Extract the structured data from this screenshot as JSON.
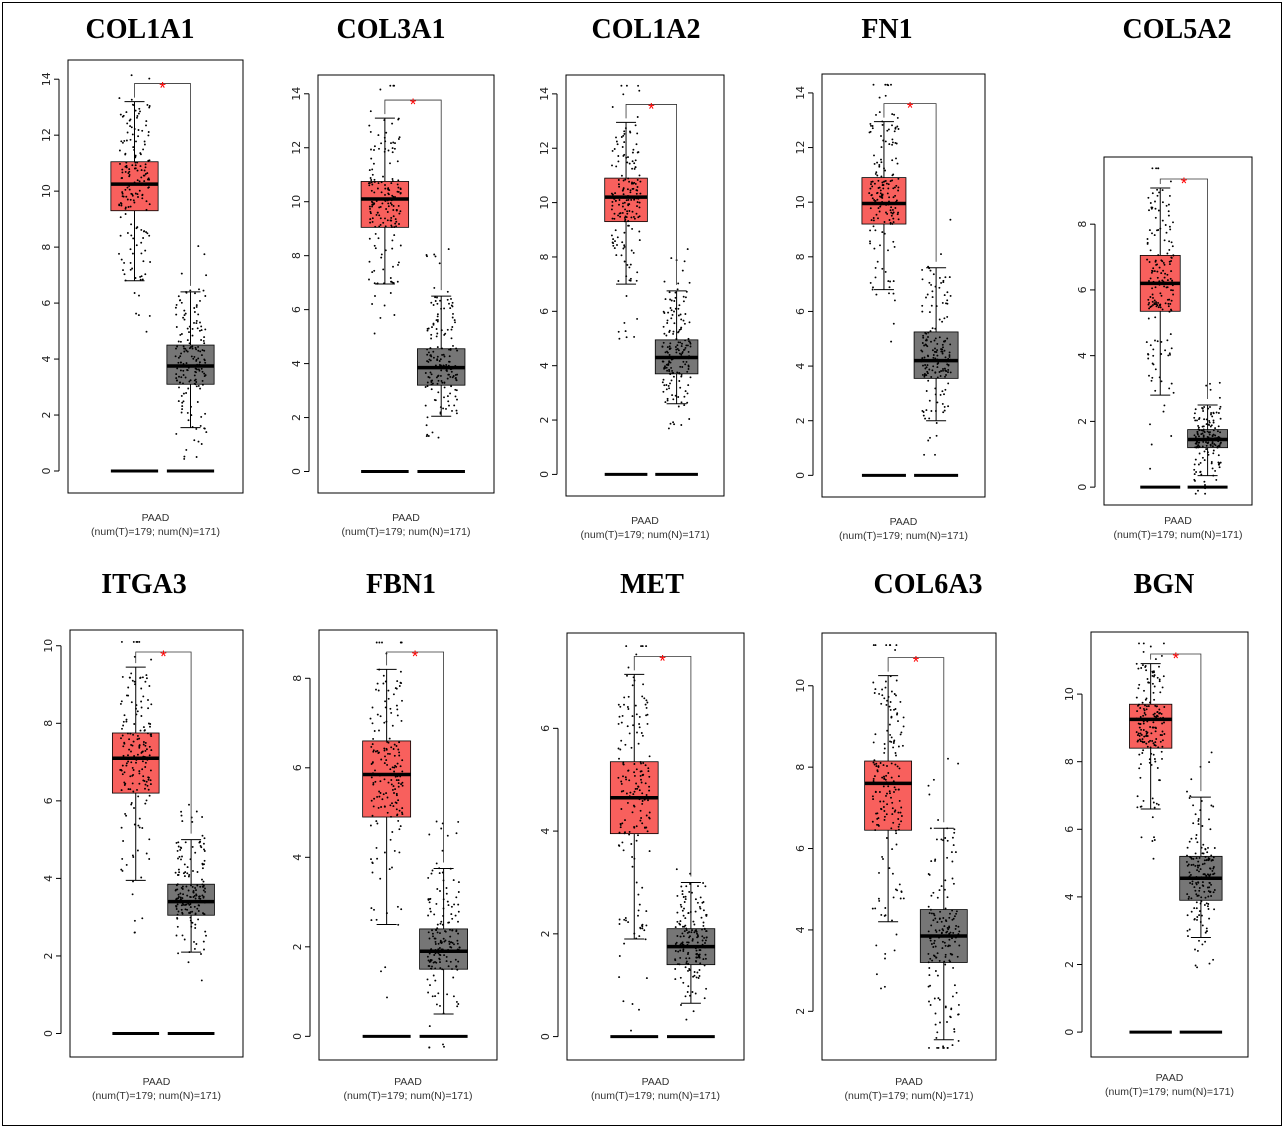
{
  "figure": {
    "colors": {
      "tumor": "#f8605d",
      "normal": "#767676",
      "significance": "#ff0000",
      "points": "#000000"
    }
  },
  "chart_data": [
    {
      "type": "box",
      "title": "COL1A1",
      "caption_line1": "PAAD",
      "caption_line2": "(num(T)=179; num(N)=171)",
      "yticks": [
        0,
        2,
        4,
        6,
        8,
        10,
        12,
        14
      ],
      "ylim": [
        -0.5,
        14.4
      ],
      "significance": "*",
      "tumor": {
        "min": 6.8,
        "q1": 9.3,
        "median": 10.25,
        "q3": 11.05,
        "max": 13.2,
        "n": 179
      },
      "normal": {
        "min": 1.55,
        "q1": 3.1,
        "median": 3.75,
        "q3": 4.5,
        "max": 6.4,
        "n": 171
      }
    },
    {
      "type": "box",
      "title": "COL3A1",
      "caption_line1": "PAAD",
      "caption_line2": "(num(T)=179; num(N)=171)",
      "yticks": [
        0,
        2,
        4,
        6,
        8,
        10,
        12,
        14
      ],
      "ylim": [
        -0.5,
        14.4
      ],
      "significance": "*",
      "tumor": {
        "min": 6.95,
        "q1": 9.05,
        "median": 10.1,
        "q3": 10.75,
        "max": 13.1,
        "n": 179
      },
      "normal": {
        "min": 2.05,
        "q1": 3.2,
        "median": 3.85,
        "q3": 4.55,
        "max": 6.5,
        "n": 171
      }
    },
    {
      "type": "box",
      "title": "COL1A2",
      "caption_line1": "PAAD",
      "caption_line2": "(num(T)=179; num(N)=171)",
      "yticks": [
        0,
        2,
        4,
        6,
        8,
        10,
        12,
        14
      ],
      "ylim": [
        -0.5,
        14.4
      ],
      "significance": "*",
      "tumor": {
        "min": 7.0,
        "q1": 9.3,
        "median": 10.2,
        "q3": 10.9,
        "max": 12.95,
        "n": 179
      },
      "normal": {
        "min": 2.6,
        "q1": 3.7,
        "median": 4.3,
        "q3": 4.95,
        "max": 6.75,
        "n": 171
      }
    },
    {
      "type": "box",
      "title": "FN1",
      "caption_line1": "PAAD",
      "caption_line2": "(num(T)=179; num(N)=171)",
      "yticks": [
        0,
        2,
        4,
        6,
        8,
        10,
        12,
        14
      ],
      "ylim": [
        -0.5,
        14.4
      ],
      "significance": "*",
      "tumor": {
        "min": 6.8,
        "q1": 9.2,
        "median": 9.95,
        "q3": 10.9,
        "max": 12.95,
        "n": 179
      },
      "normal": {
        "min": 2.0,
        "q1": 3.55,
        "median": 4.2,
        "q3": 5.25,
        "max": 7.6,
        "n": 171
      }
    },
    {
      "type": "box",
      "title": "COL5A2",
      "caption_line1": "PAAD",
      "caption_line2": "(num(T)=179; num(N)=171)",
      "yticks": [
        0,
        2,
        4,
        6,
        8
      ],
      "ylim": [
        -0.3,
        9.8
      ],
      "significance": "*",
      "tumor": {
        "min": 2.8,
        "q1": 5.35,
        "median": 6.2,
        "q3": 7.05,
        "max": 9.1,
        "n": 179
      },
      "normal": {
        "min": 0.35,
        "q1": 1.2,
        "median": 1.45,
        "q3": 1.75,
        "max": 2.5,
        "n": 171
      }
    },
    {
      "type": "box",
      "title": "ITGA3",
      "caption_line1": "PAAD",
      "caption_line2": "(num(T)=179; num(N)=171)",
      "yticks": [
        0,
        2,
        4,
        6,
        8,
        10
      ],
      "ylim": [
        -0.4,
        10.2
      ],
      "significance": "*",
      "tumor": {
        "min": 3.95,
        "q1": 6.2,
        "median": 7.1,
        "q3": 7.75,
        "max": 9.45,
        "n": 179
      },
      "normal": {
        "min": 2.1,
        "q1": 3.05,
        "median": 3.4,
        "q3": 3.85,
        "max": 5.0,
        "n": 171
      }
    },
    {
      "type": "box",
      "title": "FBN1",
      "caption_line1": "PAAD",
      "caption_line2": "(num(T)=179; num(N)=171)",
      "yticks": [
        0,
        2,
        4,
        6,
        8
      ],
      "ylim": [
        -0.35,
        8.9
      ],
      "significance": "*",
      "tumor": {
        "min": 2.5,
        "q1": 4.9,
        "median": 5.85,
        "q3": 6.6,
        "max": 8.2,
        "n": 179
      },
      "normal": {
        "min": 0.5,
        "q1": 1.5,
        "median": 1.9,
        "q3": 2.4,
        "max": 3.75,
        "n": 171
      }
    },
    {
      "type": "box",
      "title": "MET",
      "caption_line1": "PAAD",
      "caption_line2": "(num(T)=179; num(N)=171)",
      "yticks": [
        0,
        2,
        4,
        6
      ],
      "ylim": [
        -0.3,
        7.7
      ],
      "significance": "*",
      "tumor": {
        "min": 1.9,
        "q1": 3.95,
        "median": 4.65,
        "q3": 5.35,
        "max": 7.05,
        "n": 179
      },
      "normal": {
        "min": 0.65,
        "q1": 1.4,
        "median": 1.75,
        "q3": 2.1,
        "max": 3.0,
        "n": 171
      }
    },
    {
      "type": "box",
      "title": "COL6A3",
      "caption_line1": "PAAD",
      "caption_line2": "(num(T)=179; num(N)=171)",
      "yticks": [
        2,
        4,
        6,
        8,
        10
      ],
      "ylim": [
        1.0,
        11.1
      ],
      "significance": "*",
      "tumor": {
        "min": 4.2,
        "q1": 6.45,
        "median": 7.6,
        "q3": 8.15,
        "max": 10.25,
        "n": 179
      },
      "normal": {
        "min": 1.3,
        "q1": 3.2,
        "median": 3.85,
        "q3": 4.5,
        "max": 6.5,
        "n": 171
      }
    },
    {
      "type": "box",
      "title": "BGN",
      "caption_line1": "PAAD",
      "caption_line2": "(num(T)=179; num(N)=171)",
      "yticks": [
        0,
        2,
        4,
        6,
        8,
        10
      ],
      "ylim": [
        -0.5,
        11.6
      ],
      "significance": "*",
      "tumor": {
        "min": 6.6,
        "q1": 8.4,
        "median": 9.25,
        "q3": 9.7,
        "max": 10.9,
        "n": 179
      },
      "normal": {
        "min": 2.8,
        "q1": 3.9,
        "median": 4.55,
        "q3": 5.2,
        "max": 6.95,
        "n": 171
      }
    }
  ]
}
